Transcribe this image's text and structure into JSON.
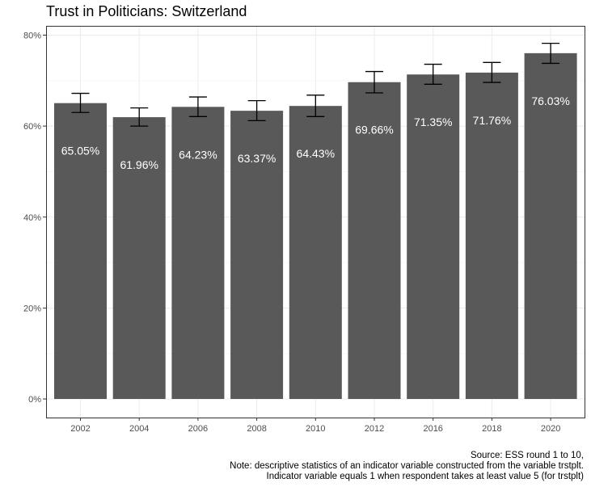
{
  "chart_data": {
    "type": "bar",
    "title": "Trust in Politicians: Switzerland",
    "xlabel": "",
    "ylabel": "",
    "categories": [
      "2002",
      "2004",
      "2006",
      "2008",
      "2010",
      "2012",
      "2016",
      "2018",
      "2020"
    ],
    "values": [
      65.05,
      61.96,
      64.23,
      63.37,
      64.43,
      69.66,
      71.35,
      71.76,
      76.03
    ],
    "value_labels": [
      "65.05%",
      "61.96%",
      "64.23%",
      "63.37%",
      "64.43%",
      "69.66%",
      "71.35%",
      "71.76%",
      "76.03%"
    ],
    "error_bars": [
      {
        "low": 63.0,
        "high": 67.2
      },
      {
        "low": 60.0,
        "high": 64.0
      },
      {
        "low": 62.1,
        "high": 66.4
      },
      {
        "low": 61.2,
        "high": 65.6
      },
      {
        "low": 62.1,
        "high": 66.8
      },
      {
        "low": 67.3,
        "high": 72.0
      },
      {
        "low": 69.2,
        "high": 73.6
      },
      {
        "low": 69.6,
        "high": 74.0
      },
      {
        "low": 73.8,
        "high": 78.2
      }
    ],
    "ylim": [
      0,
      80
    ],
    "y_ticks": [
      0,
      20,
      40,
      60,
      80
    ],
    "y_tick_labels": [
      "0%",
      "20%",
      "40%",
      "60%",
      "80%"
    ],
    "grid": true,
    "colors": {
      "bar": "#595959",
      "panel_border": "#333333",
      "grid_major": "#ebebeb",
      "grid_minor": "#f5f5f5",
      "error_bar": "#000000",
      "bar_label": "#ffffff"
    },
    "caption_lines": [
      "Source: ESS round 1 to 10,",
      "Note: descriptive statistics of an indicator variable constructed from the variable trstplt.",
      "Indicator variable equals 1 when respondent takes at least value 5 (for trstplt)"
    ]
  }
}
